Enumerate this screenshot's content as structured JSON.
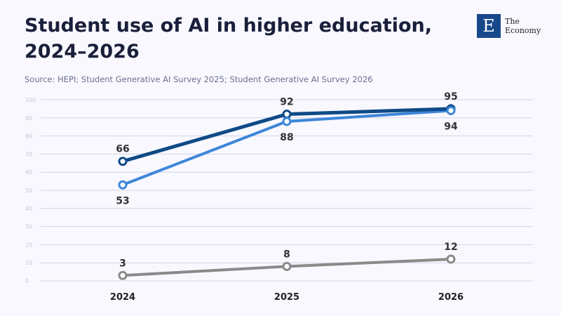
{
  "title": "Student use of AI in higher education, 2024–2026",
  "source": "Source: HEPI; Student Generative AI Survey 2025; Student Generative AI Survey 2026",
  "logo": {
    "mark": "E",
    "line1": "The",
    "line2": "Economy"
  },
  "chart_data": {
    "type": "line",
    "x": [
      "2024",
      "2025",
      "2026"
    ],
    "ylim": [
      0,
      100
    ],
    "yticks": [
      0,
      10,
      20,
      30,
      40,
      50,
      60,
      70,
      80,
      90,
      100
    ],
    "grid": true,
    "series": [
      {
        "values": [
          66,
          92,
          95
        ],
        "color": "#0f4a86",
        "label_pos": [
          "above",
          "above",
          "above"
        ]
      },
      {
        "values": [
          53,
          88,
          94
        ],
        "color": "#3d86d9",
        "label_pos": [
          "below",
          "below",
          "below"
        ]
      },
      {
        "values": [
          3,
          8,
          12
        ],
        "color": "#8a8a8a",
        "label_pos": [
          "above",
          "above",
          "above"
        ]
      }
    ]
  }
}
